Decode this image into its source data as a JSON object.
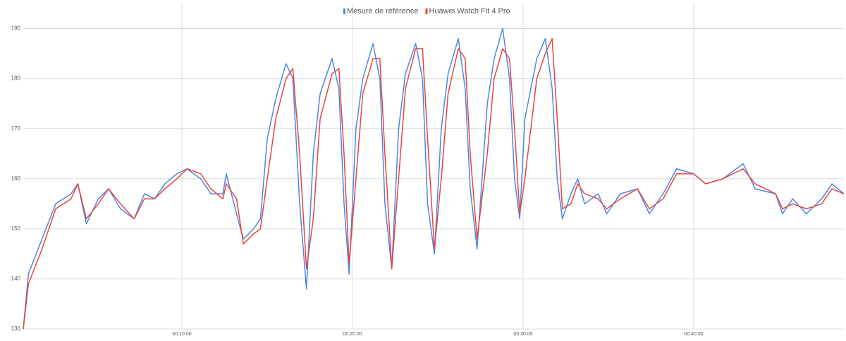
{
  "chart_data": {
    "type": "line",
    "x": [
      0.7,
      1.0,
      1.8,
      2.6,
      3.5,
      3.9,
      4.4,
      5.1,
      5.7,
      6.4,
      7.2,
      7.8,
      8.4,
      9.0,
      9.7,
      10.3,
      11.1,
      11.7,
      12.4,
      12.6,
      13.2,
      13.6,
      14.2,
      14.6,
      15.0,
      15.5,
      16.1,
      16.5,
      16.9,
      17.3,
      17.7,
      18.1,
      18.8,
      19.2,
      19.5,
      19.8,
      20.2,
      20.6,
      21.2,
      21.6,
      21.9,
      22.3,
      22.7,
      23.1,
      23.7,
      24.1,
      24.4,
      24.8,
      25.2,
      25.6,
      26.2,
      26.6,
      26.9,
      27.3,
      27.9,
      28.3,
      28.8,
      29.2,
      29.5,
      29.8,
      30.1,
      30.8,
      31.3,
      31.7,
      32.0,
      32.3,
      32.8,
      33.2,
      33.6,
      34.4,
      34.9,
      35.7,
      36.7,
      37.4,
      38.2,
      39.0,
      40.0,
      40.7,
      41.7,
      42.9,
      43.6,
      44.8,
      45.2,
      45.8,
      46.6,
      47.5,
      48.1,
      48.8
    ],
    "series": [
      {
        "name": "Mesure de référence",
        "color": "#4a86e8",
        "values": [
          130,
          141,
          148,
          155,
          157,
          159,
          151,
          156,
          158,
          154,
          152,
          157,
          156,
          159,
          161,
          162,
          160,
          157,
          157,
          161,
          153,
          148,
          150,
          152,
          168,
          176,
          183,
          180,
          155,
          138,
          165,
          177,
          184,
          178,
          155,
          141,
          170,
          180,
          187,
          180,
          155,
          142,
          170,
          181,
          187,
          180,
          155,
          145,
          170,
          181,
          188,
          178,
          158,
          146,
          175,
          184,
          190,
          180,
          160,
          152,
          172,
          184,
          188,
          178,
          160,
          152,
          157,
          160,
          155,
          157,
          153,
          157,
          158,
          153,
          157,
          162,
          161,
          159,
          160,
          163,
          158,
          157,
          153,
          156,
          153,
          156,
          159,
          157
        ]
      },
      {
        "name": "Huawei Watch Fit 4 Pro",
        "color": "#e8453c",
        "values": [
          130,
          139,
          146,
          154,
          156,
          159,
          152,
          155,
          158,
          155,
          152,
          156,
          156,
          158,
          160,
          162,
          161,
          158,
          156,
          159,
          156,
          147,
          149,
          150,
          160,
          172,
          180,
          182,
          165,
          142,
          152,
          172,
          181,
          182,
          165,
          143,
          160,
          177,
          184,
          184,
          165,
          142,
          160,
          178,
          186,
          186,
          168,
          146,
          160,
          177,
          186,
          184,
          165,
          148,
          165,
          180,
          186,
          184,
          170,
          153,
          160,
          180,
          185,
          188,
          172,
          154,
          155,
          159,
          157,
          156,
          154,
          156,
          158,
          154,
          156,
          161,
          161,
          159,
          160,
          162,
          159,
          157,
          154,
          155,
          154,
          155,
          158,
          157
        ]
      }
    ],
    "xlim": [
      0.7,
      48.8
    ],
    "xticks": [
      {
        "value": 10,
        "label": "00:10:00"
      },
      {
        "value": 20,
        "label": "00:20:00"
      },
      {
        "value": 30,
        "label": "00:30:00"
      },
      {
        "value": 40,
        "label": "00:40:00"
      }
    ],
    "ylim": [
      130,
      195
    ],
    "yticks": [
      130,
      140,
      150,
      160,
      170,
      180,
      190
    ],
    "grid": true,
    "legend": "top"
  }
}
